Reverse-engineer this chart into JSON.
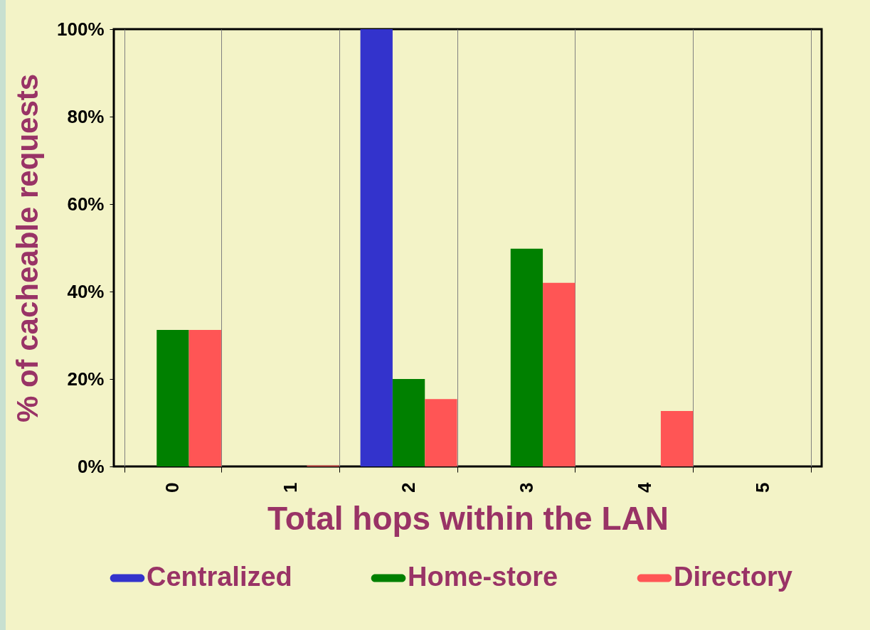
{
  "chart_data": {
    "type": "bar",
    "xlabel": "Total hops within the LAN",
    "ylabel": "% of cacheable requests",
    "categories": [
      "0",
      "1",
      "2",
      "3",
      "4",
      "5"
    ],
    "series": [
      {
        "name": "Centralized",
        "color": "#3333cc",
        "values": [
          0,
          0,
          100,
          0,
          0,
          0
        ]
      },
      {
        "name": "Home-store",
        "color": "#008000",
        "values": [
          31.2,
          0,
          20,
          49.8,
          0,
          0
        ]
      },
      {
        "name": "Directory",
        "color": "#ff5555",
        "values": [
          31.2,
          0.2,
          15.4,
          42,
          12.7,
          0
        ]
      }
    ],
    "ylim": [
      0,
      100
    ],
    "yticks": [
      {
        "value": 0,
        "label": "0%"
      },
      {
        "value": 20,
        "label": "20%"
      },
      {
        "value": 40,
        "label": "40%"
      },
      {
        "value": 60,
        "label": "60%"
      },
      {
        "value": 80,
        "label": "80%"
      },
      {
        "value": 100,
        "label": "100%"
      }
    ],
    "grid": "x",
    "legend": "bottom"
  }
}
